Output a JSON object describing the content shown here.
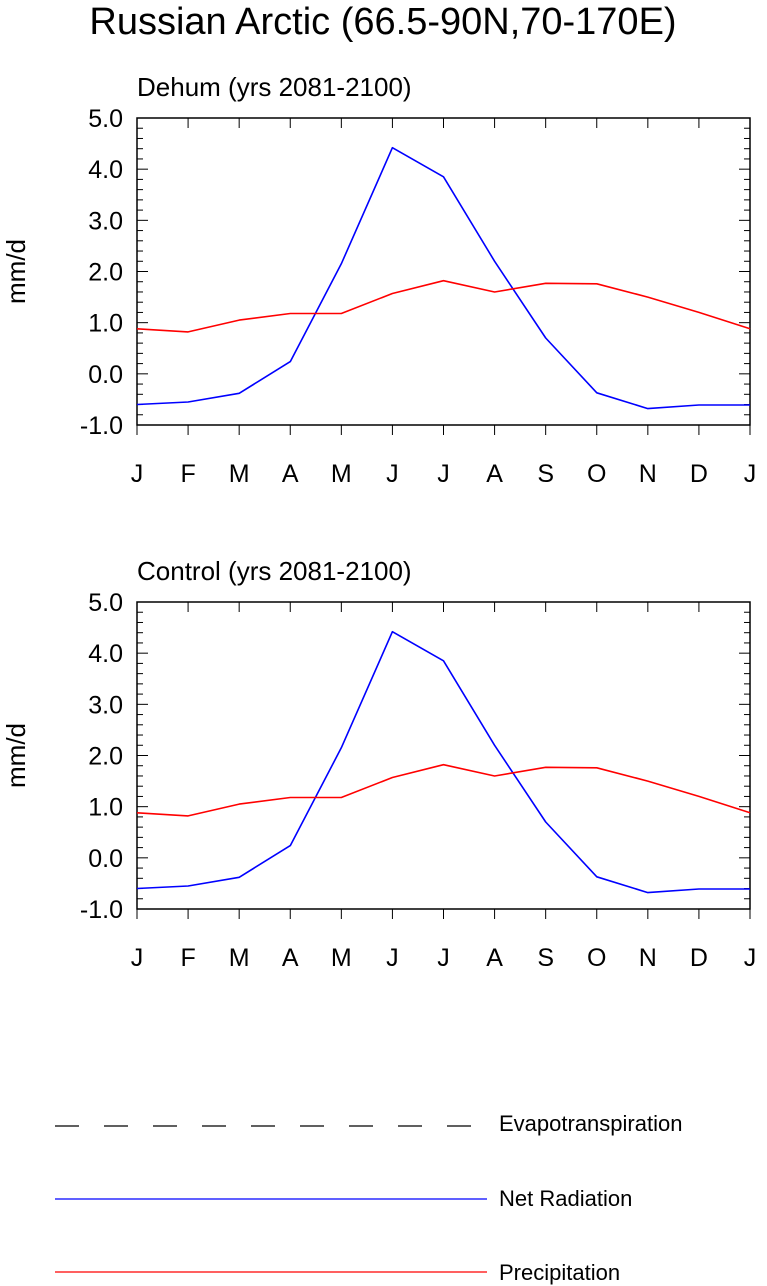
{
  "title": "Russian Arctic (66.5-90N,70-170E)",
  "colors": {
    "net_radiation": "#0000ff",
    "precipitation": "#ff0000",
    "evapotranspiration": "#000000"
  },
  "chart_data": [
    {
      "type": "line",
      "title": "Dehum (yrs 2081-2100)",
      "ylabel": "mm/d",
      "xlabel": "",
      "categories": [
        "J",
        "F",
        "M",
        "A",
        "M",
        "J",
        "J",
        "A",
        "S",
        "O",
        "N",
        "D",
        "J"
      ],
      "ylim": [
        -1.0,
        5.0
      ],
      "yticks": [
        "5.0",
        "4.0",
        "3.0",
        "2.0",
        "1.0",
        "0.0",
        "-1.0"
      ],
      "grid": false,
      "series": [
        {
          "name": "Net Radiation",
          "color": "#0000ff",
          "values": [
            -0.6,
            -0.55,
            -0.38,
            0.24,
            2.15,
            4.42,
            3.85,
            2.2,
            0.7,
            -0.37,
            -0.68,
            -0.61,
            -0.61
          ]
        },
        {
          "name": "Precipitation",
          "color": "#ff0000",
          "values": [
            0.88,
            0.82,
            1.05,
            1.18,
            1.18,
            1.57,
            1.82,
            1.6,
            1.77,
            1.76,
            1.5,
            1.2,
            0.88
          ]
        }
      ]
    },
    {
      "type": "line",
      "title": "Control (yrs 2081-2100)",
      "ylabel": "mm/d",
      "xlabel": "",
      "categories": [
        "J",
        "F",
        "M",
        "A",
        "M",
        "J",
        "J",
        "A",
        "S",
        "O",
        "N",
        "D",
        "J"
      ],
      "ylim": [
        -1.0,
        5.0
      ],
      "yticks": [
        "5.0",
        "4.0",
        "3.0",
        "2.0",
        "1.0",
        "0.0",
        "-1.0"
      ],
      "grid": false,
      "series": [
        {
          "name": "Net Radiation",
          "color": "#0000ff",
          "values": [
            -0.6,
            -0.55,
            -0.38,
            0.24,
            2.15,
            4.42,
            3.85,
            2.2,
            0.7,
            -0.37,
            -0.68,
            -0.61,
            -0.61
          ]
        },
        {
          "name": "Precipitation",
          "color": "#ff0000",
          "values": [
            0.88,
            0.82,
            1.05,
            1.18,
            1.18,
            1.57,
            1.82,
            1.6,
            1.77,
            1.76,
            1.5,
            1.2,
            0.88
          ]
        }
      ]
    }
  ],
  "legend": [
    {
      "label": "Evapotranspiration",
      "style": "dashed",
      "color": "#000000"
    },
    {
      "label": "Net Radiation",
      "style": "solid",
      "color": "#0000ff"
    },
    {
      "label": "Precipitation",
      "style": "solid",
      "color": "#ff0000"
    }
  ]
}
